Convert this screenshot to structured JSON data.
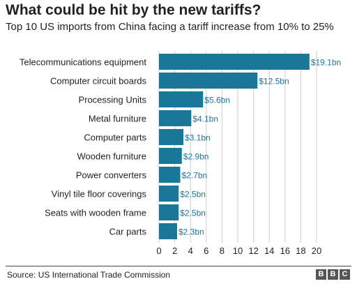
{
  "chart_data": {
    "type": "bar",
    "orientation": "horizontal",
    "title": "What could be hit by the new tariffs?",
    "subtitle": "Top 10 US imports from China facing a tariff increase from 10% to 25%",
    "categories": [
      "Telecommunications equipment",
      "Computer circuit boards",
      "Processing Units",
      "Metal furniture",
      "Computer parts",
      "Wooden furniture",
      "Power converters",
      "Vinyl tile floor coverings",
      "Seats with wooden frame",
      "Car parts"
    ],
    "values": [
      19.1,
      12.5,
      5.6,
      4.1,
      3.1,
      2.9,
      2.7,
      2.5,
      2.5,
      2.3
    ],
    "value_labels": [
      "$19.1bn",
      "$12.5bn",
      "$5.6bn",
      "$4.1bn",
      "$3.1bn",
      "$2.9bn",
      "$2.7bn",
      "$2.5bn",
      "$2.5bn",
      "$2.3bn"
    ],
    "xlim": [
      0,
      20
    ],
    "xticks": [
      "0",
      "2",
      "4",
      "6",
      "8",
      "10",
      "12",
      "14",
      "16",
      "18",
      "20"
    ],
    "xlabel": "",
    "ylabel": "",
    "grid": true,
    "bar_color": "#1a7797",
    "value_label_color": "#1a7797"
  },
  "footer": {
    "source": "Source: US International Trade Commission",
    "logo_letters": [
      "B",
      "B",
      "C"
    ]
  }
}
